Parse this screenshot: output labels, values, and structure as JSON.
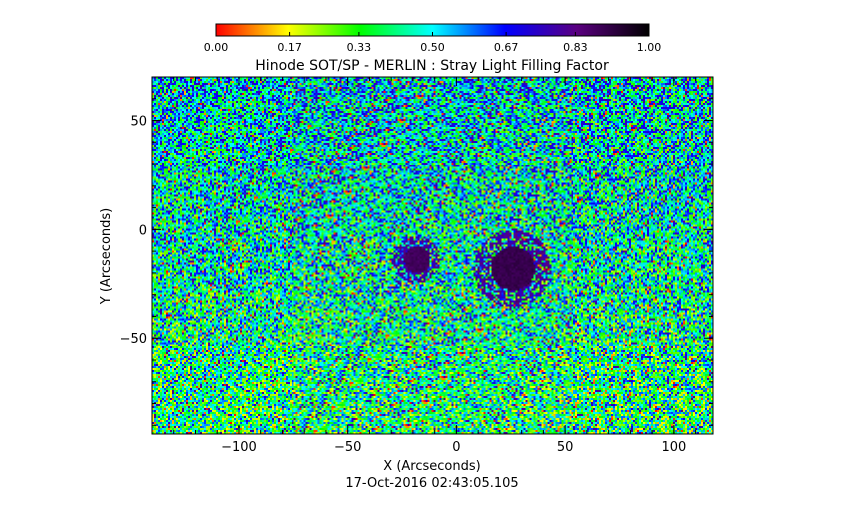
{
  "chart_data": {
    "type": "heatmap",
    "title": "Hinode SOT/SP - MERLIN : Stray Light Filling Factor",
    "xlabel": "X (Arcseconds)",
    "ylabel": "Y (Arcseconds)",
    "timestamp": "17-Oct-2016 02:43:05.105",
    "xlim": [
      -140,
      118
    ],
    "ylim": [
      -94,
      70
    ],
    "x_ticks": [
      -100,
      -50,
      0,
      50,
      100
    ],
    "x_tick_labels": [
      "−100",
      "−50",
      "0",
      "50",
      "100"
    ],
    "y_ticks": [
      -50,
      0,
      50
    ],
    "y_tick_labels": [
      "−50",
      "0",
      "50"
    ],
    "colorbar": {
      "min": 0.0,
      "max": 1.0,
      "ticks": [
        0.0,
        0.17,
        0.33,
        0.5,
        0.67,
        0.83,
        1.0
      ],
      "tick_labels": [
        "0.00",
        "0.17",
        "0.33",
        "0.50",
        "0.67",
        "0.83",
        "1.00"
      ],
      "colors": [
        "#ff0000",
        "#ffff00",
        "#00ff00",
        "#00ffff",
        "#0000ff",
        "#5a0080",
        "#000000"
      ]
    },
    "features": [
      {
        "name": "pore",
        "center": [
          -18,
          -14
        ],
        "radius": 6,
        "value": 0.9
      },
      {
        "name": "sunspot",
        "center": [
          26,
          -18
        ],
        "radius": 10,
        "value": 0.92
      }
    ],
    "background_value_range": [
      0.2,
      0.7
    ]
  }
}
